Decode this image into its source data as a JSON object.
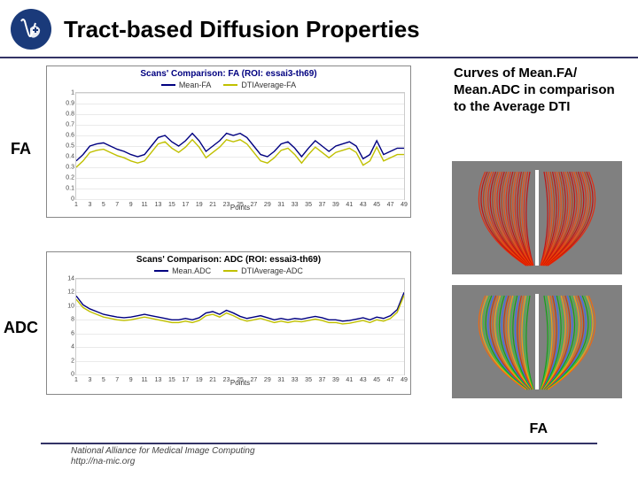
{
  "page": {
    "title": "Tract-based Diffusion Properties",
    "footer_line1": "National Alliance for Medical Image Computing",
    "footer_line2": "http://na-mic.org"
  },
  "sidebar": {
    "label_fa": "FA",
    "label_adc": "ADC"
  },
  "right": {
    "caption": "Curves of Mean.FA/ Mean.ADC in comparison to the Average DTI",
    "thumb2_label": "FA",
    "thumb_bg": "#808080",
    "thumb1_colors": [
      "#cc0000",
      "#ee2200",
      "#ff4400",
      "#cc3300"
    ],
    "thumb2_colors": [
      "#00aa00",
      "#33cc33",
      "#ffaa00",
      "#ff6600",
      "#cc3300",
      "#3366ff"
    ]
  },
  "chart_fa": {
    "type": "line",
    "title": "Scans' Comparison: FA (ROI: essai3-th69)",
    "title_color": "#000080",
    "legend": [
      {
        "label": "Mean-FA",
        "color": "#000080"
      },
      {
        "label": "DTIAverage-FA",
        "color": "#c0c000"
      }
    ],
    "x_label": "Points",
    "y_label": "FA",
    "xlim": [
      1,
      49
    ],
    "ylim": [
      0,
      1.0
    ],
    "ytick_step": 0.1,
    "xtick_step": 2,
    "grid_color": "#eaeaea",
    "bg": "#ffffff",
    "line_width": 1.4,
    "series": [
      {
        "color": "#000080",
        "y": [
          0.36,
          0.42,
          0.5,
          0.52,
          0.53,
          0.5,
          0.47,
          0.45,
          0.42,
          0.4,
          0.42,
          0.5,
          0.58,
          0.6,
          0.54,
          0.5,
          0.55,
          0.62,
          0.55,
          0.45,
          0.5,
          0.55,
          0.62,
          0.6,
          0.62,
          0.58,
          0.5,
          0.42,
          0.4,
          0.45,
          0.52,
          0.54,
          0.48,
          0.4,
          0.48,
          0.55,
          0.5,
          0.45,
          0.5,
          0.52,
          0.54,
          0.5,
          0.38,
          0.42,
          0.55,
          0.42,
          0.45,
          0.48,
          0.48
        ]
      },
      {
        "color": "#c0c000",
        "y": [
          0.3,
          0.36,
          0.44,
          0.46,
          0.47,
          0.44,
          0.41,
          0.39,
          0.36,
          0.34,
          0.36,
          0.44,
          0.52,
          0.54,
          0.48,
          0.44,
          0.49,
          0.56,
          0.49,
          0.39,
          0.44,
          0.49,
          0.56,
          0.54,
          0.56,
          0.52,
          0.44,
          0.36,
          0.34,
          0.39,
          0.46,
          0.48,
          0.42,
          0.34,
          0.42,
          0.49,
          0.44,
          0.39,
          0.44,
          0.46,
          0.48,
          0.44,
          0.32,
          0.36,
          0.49,
          0.36,
          0.39,
          0.42,
          0.42
        ]
      }
    ]
  },
  "chart_adc": {
    "type": "line",
    "title": "Scans' Comparison: ADC (ROI: essai3-th69)",
    "title_color": "#000000",
    "legend": [
      {
        "label": "Mean.ADC",
        "color": "#000080"
      },
      {
        "label": "DTIAverage-ADC",
        "color": "#c0c000"
      }
    ],
    "x_label": "Points",
    "y_label": "ADC",
    "xlim": [
      1,
      49
    ],
    "ylim": [
      0,
      14
    ],
    "ytick_step": 2,
    "xtick_step": 2,
    "grid_color": "#eaeaea",
    "bg": "#ffffff",
    "line_width": 1.4,
    "series": [
      {
        "color": "#000080",
        "y": [
          11.5,
          10.2,
          9.6,
          9.2,
          8.8,
          8.6,
          8.4,
          8.3,
          8.4,
          8.6,
          8.8,
          8.6,
          8.4,
          8.2,
          8.0,
          8.0,
          8.2,
          8.0,
          8.3,
          9.0,
          9.2,
          8.8,
          9.4,
          9.0,
          8.5,
          8.2,
          8.4,
          8.6,
          8.3,
          8.0,
          8.2,
          8.0,
          8.2,
          8.1,
          8.3,
          8.5,
          8.3,
          8.0,
          8.0,
          7.8,
          7.9,
          8.1,
          8.3,
          8.0,
          8.4,
          8.2,
          8.6,
          9.5,
          12.0
        ]
      },
      {
        "color": "#c0c000",
        "y": [
          11.0,
          9.8,
          9.2,
          8.8,
          8.4,
          8.2,
          8.0,
          7.9,
          8.0,
          8.2,
          8.4,
          8.2,
          8.0,
          7.8,
          7.6,
          7.6,
          7.8,
          7.6,
          7.9,
          8.6,
          8.8,
          8.4,
          9.0,
          8.6,
          8.1,
          7.8,
          8.0,
          8.2,
          7.9,
          7.6,
          7.8,
          7.6,
          7.8,
          7.7,
          7.9,
          8.1,
          7.9,
          7.6,
          7.6,
          7.4,
          7.5,
          7.7,
          7.9,
          7.6,
          8.0,
          7.8,
          8.2,
          9.1,
          11.6
        ]
      }
    ]
  }
}
